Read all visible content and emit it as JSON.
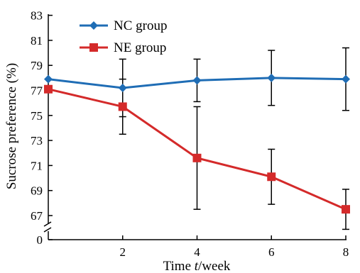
{
  "chart_data": {
    "type": "line",
    "xlabel_prefix": "Time ",
    "xlabel_var": "t",
    "xlabel_suffix": "/week",
    "ylabel": "Sucrose preference (%)",
    "x": [
      0,
      2,
      4,
      6,
      8
    ],
    "x_ticks": [
      2,
      4,
      6,
      8
    ],
    "y_ticks": [
      "0",
      "67",
      "69",
      "71",
      "73",
      "75",
      "77",
      "79",
      "81",
      "83"
    ],
    "ylim": [
      66,
      83
    ],
    "y_axis_break": true,
    "grid": false,
    "legend_position": "top-left",
    "series": [
      {
        "name": "NC group",
        "color": "#1f6db5",
        "marker": "diamond",
        "values": [
          77.9,
          77.2,
          77.8,
          78.0,
          77.9
        ],
        "error": [
          null,
          2.3,
          1.7,
          2.2,
          2.5
        ]
      },
      {
        "name": "NE group",
        "color": "#d42a2a",
        "marker": "square",
        "values": [
          77.1,
          75.7,
          71.6,
          70.1,
          67.5
        ],
        "error": [
          null,
          2.2,
          4.1,
          2.2,
          1.6
        ]
      }
    ]
  }
}
